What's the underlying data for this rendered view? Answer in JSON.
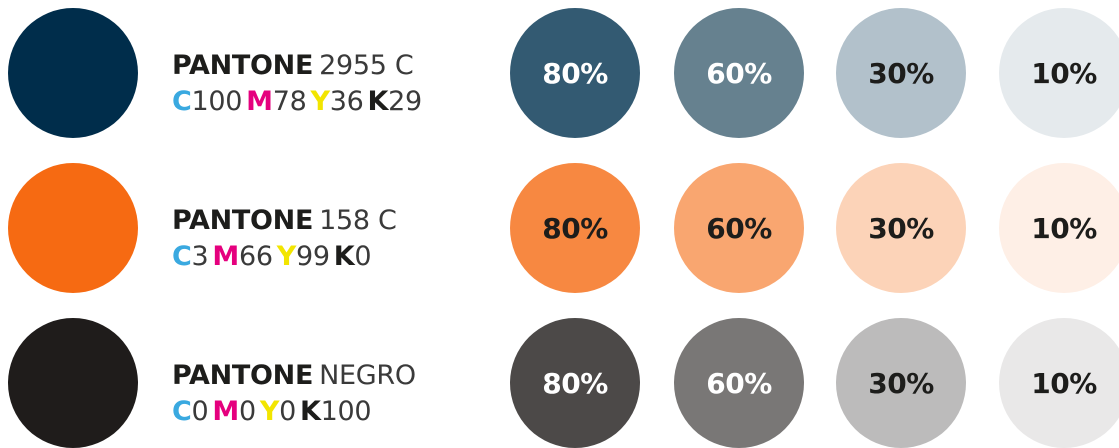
{
  "rows": [
    {
      "swatch_color": "#002d4b",
      "pantone_brand": "PANTONE",
      "pantone_code": "2955 C",
      "cmyk": [
        {
          "letter": "C",
          "value": "100",
          "color": "#3aa9e0"
        },
        {
          "letter": "M",
          "value": "78",
          "color": "#e5007e"
        },
        {
          "letter": "Y",
          "value": "36",
          "color": "#f2e500"
        },
        {
          "letter": "K",
          "value": "29",
          "color": "#1d1d1b"
        }
      ],
      "tints": [
        {
          "label": "80%",
          "bg": "#335a72",
          "fg": "#ffffff"
        },
        {
          "label": "60%",
          "bg": "#66818f",
          "fg": "#ffffff"
        },
        {
          "label": "30%",
          "bg": "#b2c1cb",
          "fg": "#1d1d1b"
        },
        {
          "label": "10%",
          "bg": "#e5eaed",
          "fg": "#1d1d1b"
        }
      ]
    },
    {
      "swatch_color": "#f66a12",
      "pantone_brand": "PANTONE",
      "pantone_code": "158 C",
      "cmyk": [
        {
          "letter": "C",
          "value": "3",
          "color": "#3aa9e0"
        },
        {
          "letter": "M",
          "value": "66",
          "color": "#e5007e"
        },
        {
          "letter": "Y",
          "value": "99",
          "color": "#f2e500"
        },
        {
          "letter": "K",
          "value": "0",
          "color": "#1d1d1b"
        }
      ],
      "tints": [
        {
          "label": "80%",
          "bg": "#f78841",
          "fg": "#1d1d1b"
        },
        {
          "label": "60%",
          "bg": "#f9a670",
          "fg": "#1d1d1b"
        },
        {
          "label": "30%",
          "bg": "#fcd3b8",
          "fg": "#1d1d1b"
        },
        {
          "label": "10%",
          "bg": "#feefe6",
          "fg": "#1d1d1b"
        }
      ]
    },
    {
      "swatch_color": "#1f1c1b",
      "pantone_brand": "PANTONE",
      "pantone_code": "NEGRO",
      "cmyk": [
        {
          "letter": "C",
          "value": "0",
          "color": "#3aa9e0"
        },
        {
          "letter": "M",
          "value": "0",
          "color": "#e5007e"
        },
        {
          "letter": "Y",
          "value": "0",
          "color": "#f2e500"
        },
        {
          "letter": "K",
          "value": "100",
          "color": "#1d1d1b"
        }
      ],
      "tints": [
        {
          "label": "80%",
          "bg": "#4c4948",
          "fg": "#ffffff"
        },
        {
          "label": "60%",
          "bg": "#797776",
          "fg": "#ffffff"
        },
        {
          "label": "30%",
          "bg": "#bcbbbb",
          "fg": "#1d1d1b"
        },
        {
          "label": "10%",
          "bg": "#e9e8e8",
          "fg": "#1d1d1b"
        }
      ]
    }
  ]
}
